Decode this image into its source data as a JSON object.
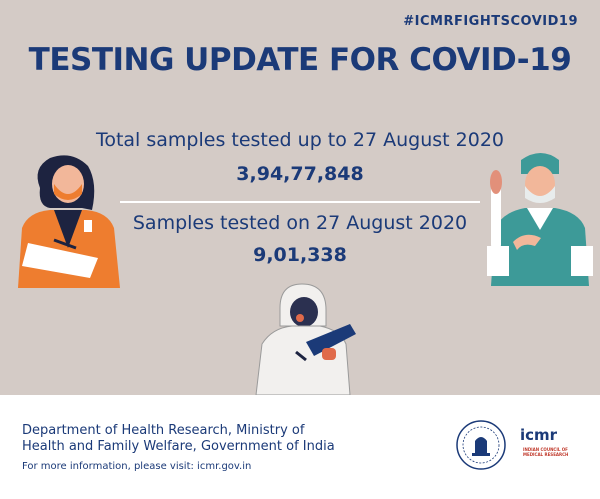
{
  "poster": {
    "hashtag": "#ICMRFIGHTSCOVID19",
    "title": "TESTING UPDATE FOR COVID-19",
    "stat1_label": "Total samples tested up to 27 August 2020",
    "stat1_value": "3,94,77,848",
    "stat2_label": "Samples tested on 27 August 2020",
    "stat2_value": "9,01,338"
  },
  "footer": {
    "dept_line1": "Department of Health Research, Ministry of",
    "dept_line2": "Health and Family Welfare, Government of India",
    "visit": "For more information, please visit: icmr.gov.in",
    "icmr_logo_text": "icmr",
    "icmr_full_name": "INDIAN COUNCIL OF MEDICAL RESEARCH"
  },
  "colors": {
    "background": "#d4cbc6",
    "primary": "#1b3a78",
    "accent_orange": "#ee7d2f",
    "accent_teal": "#3d9a98"
  },
  "icons": [
    "woman-doctor-illustration",
    "ppe-worker-illustration",
    "surgeon-illustration",
    "government-emblem",
    "icmr-logo"
  ]
}
